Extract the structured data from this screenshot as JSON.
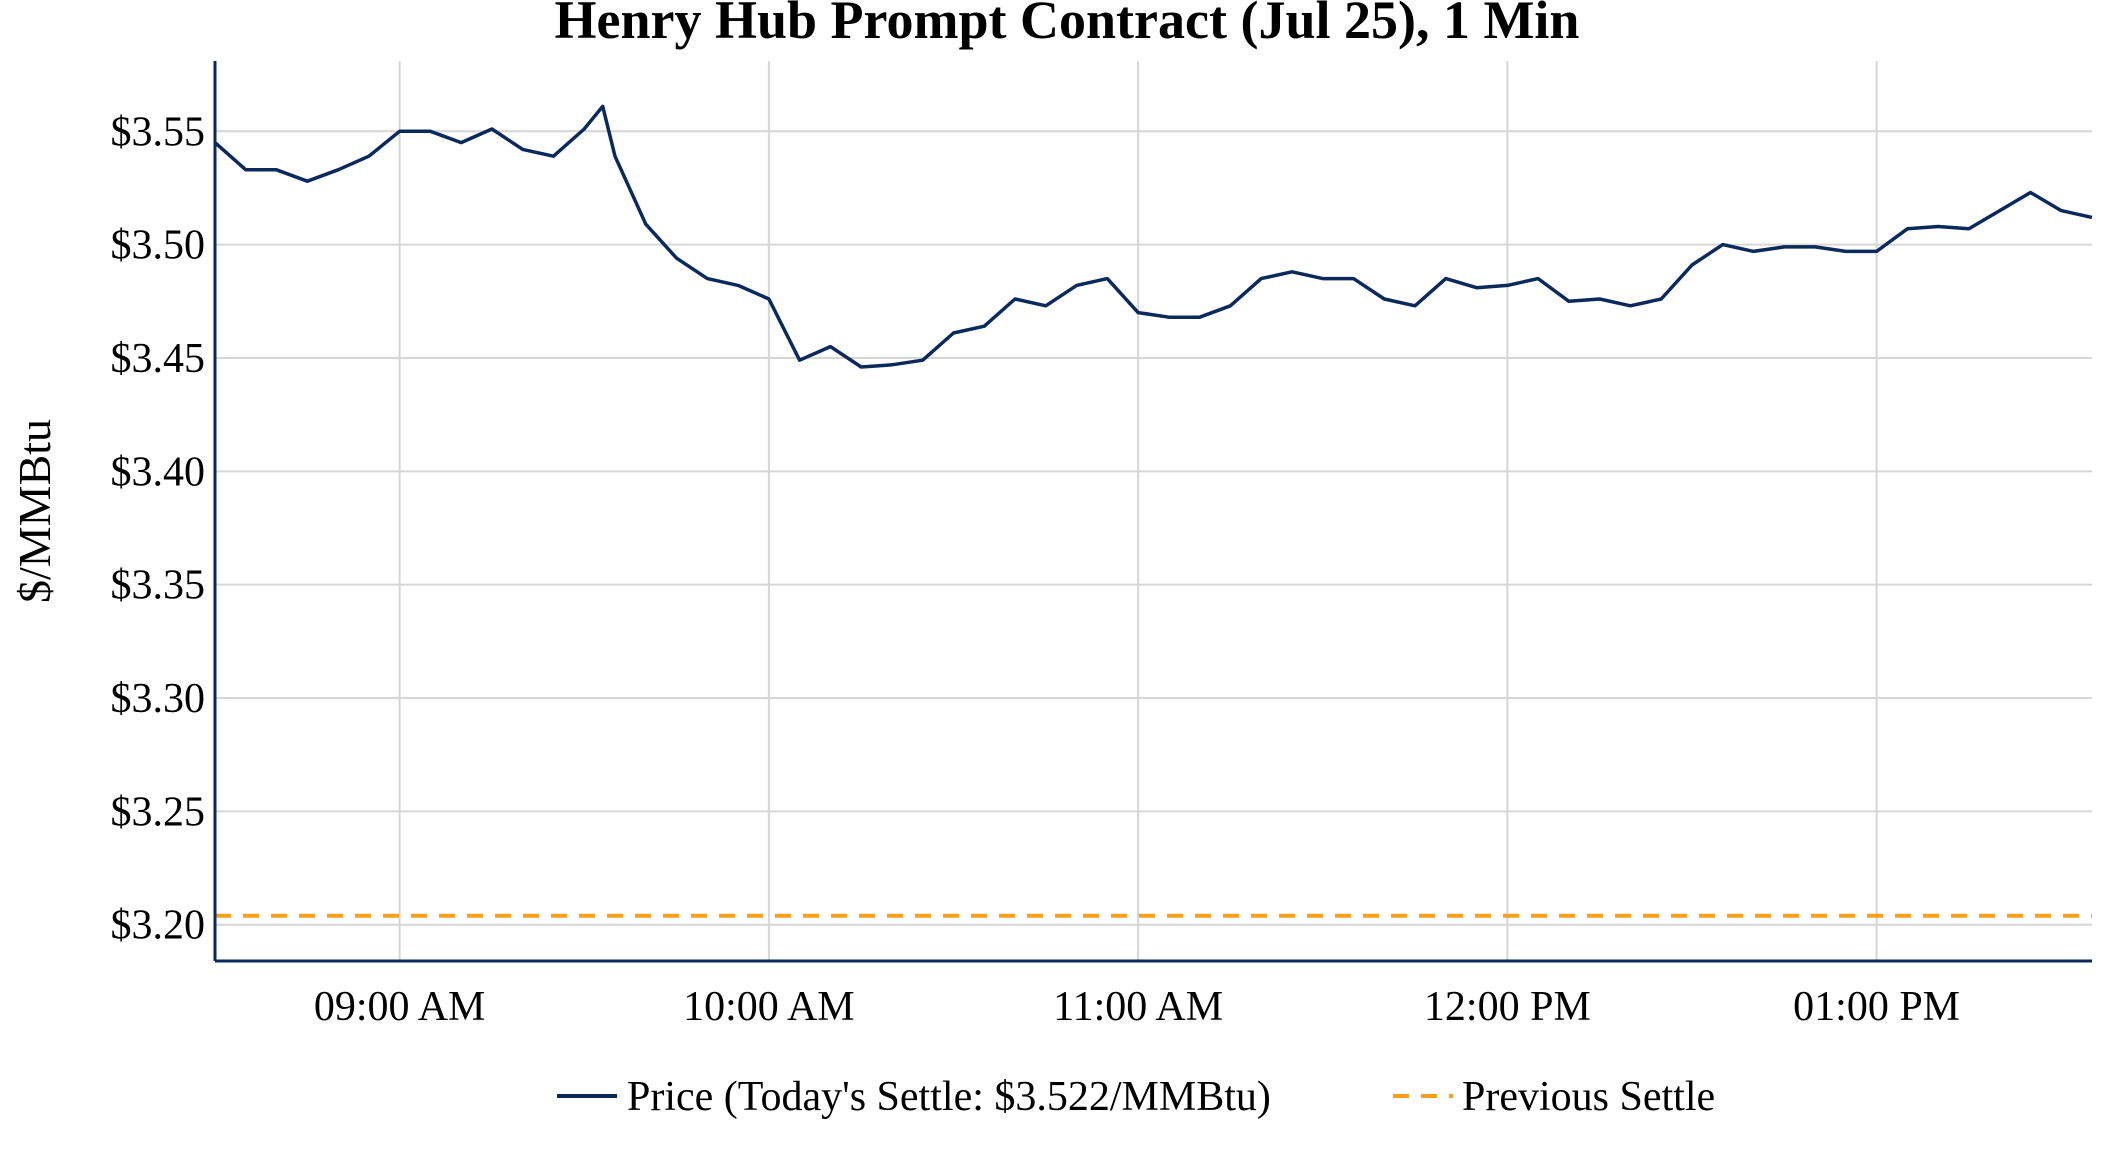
{
  "chart_data": {
    "type": "line",
    "title": "Henry Hub Prompt Contract (Jul 25), 1 Min",
    "xlabel": "",
    "ylabel": "$/MMBtu",
    "ylim": [
      3.184,
      3.581
    ],
    "xlim": [
      "08:30",
      "13:35"
    ],
    "grid": true,
    "legend_position": "bottom-center",
    "y_ticks": [
      {
        "value": 3.2,
        "label": "$3.20"
      },
      {
        "value": 3.25,
        "label": "$3.25"
      },
      {
        "value": 3.3,
        "label": "$3.30"
      },
      {
        "value": 3.35,
        "label": "$3.35"
      },
      {
        "value": 3.4,
        "label": "$3.40"
      },
      {
        "value": 3.45,
        "label": "$3.45"
      },
      {
        "value": 3.5,
        "label": "$3.50"
      },
      {
        "value": 3.55,
        "label": "$3.55"
      }
    ],
    "x_ticks": [
      {
        "value": "09:00",
        "label": "09:00 AM"
      },
      {
        "value": "10:00",
        "label": "10:00 AM"
      },
      {
        "value": "11:00",
        "label": "11:00 AM"
      },
      {
        "value": "12:00",
        "label": "12:00 PM"
      },
      {
        "value": "13:00",
        "label": "01:00 PM"
      }
    ],
    "series": [
      {
        "name": "Price (Today's Settle: $3.522/MMBtu)",
        "color": "#0b2a5b",
        "style": "solid",
        "x": [
          "08:30",
          "08:35",
          "08:40",
          "08:45",
          "08:50",
          "08:55",
          "09:00",
          "09:05",
          "09:10",
          "09:15",
          "09:20",
          "09:25",
          "09:30",
          "09:33",
          "09:35",
          "09:40",
          "09:45",
          "09:50",
          "09:55",
          "10:00",
          "10:05",
          "10:10",
          "10:15",
          "10:20",
          "10:25",
          "10:30",
          "10:35",
          "10:40",
          "10:45",
          "10:50",
          "10:55",
          "11:00",
          "11:05",
          "11:10",
          "11:15",
          "11:20",
          "11:25",
          "11:30",
          "11:35",
          "11:40",
          "11:45",
          "11:50",
          "11:55",
          "12:00",
          "12:05",
          "12:10",
          "12:15",
          "12:20",
          "12:25",
          "12:30",
          "12:35",
          "12:40",
          "12:45",
          "12:50",
          "12:55",
          "13:00",
          "13:05",
          "13:10",
          "13:15",
          "13:20",
          "13:25",
          "13:30",
          "13:35"
        ],
        "values": [
          3.545,
          3.533,
          3.533,
          3.528,
          3.533,
          3.539,
          3.55,
          3.55,
          3.545,
          3.551,
          3.542,
          3.539,
          3.551,
          3.561,
          3.539,
          3.509,
          3.494,
          3.485,
          3.482,
          3.476,
          3.449,
          3.455,
          3.446,
          3.447,
          3.449,
          3.461,
          3.464,
          3.476,
          3.473,
          3.482,
          3.485,
          3.47,
          3.468,
          3.468,
          3.473,
          3.485,
          3.488,
          3.485,
          3.485,
          3.476,
          3.473,
          3.485,
          3.481,
          3.482,
          3.485,
          3.475,
          3.476,
          3.473,
          3.476,
          3.491,
          3.5,
          3.497,
          3.499,
          3.499,
          3.497,
          3.497,
          3.507,
          3.508,
          3.507,
          3.515,
          3.523,
          3.515,
          3.512
        ]
      },
      {
        "name": "Previous Settle",
        "color": "#f5a01a",
        "style": "dashed",
        "x": [
          "08:30",
          "13:35"
        ],
        "values": [
          3.204,
          3.204
        ]
      }
    ]
  }
}
